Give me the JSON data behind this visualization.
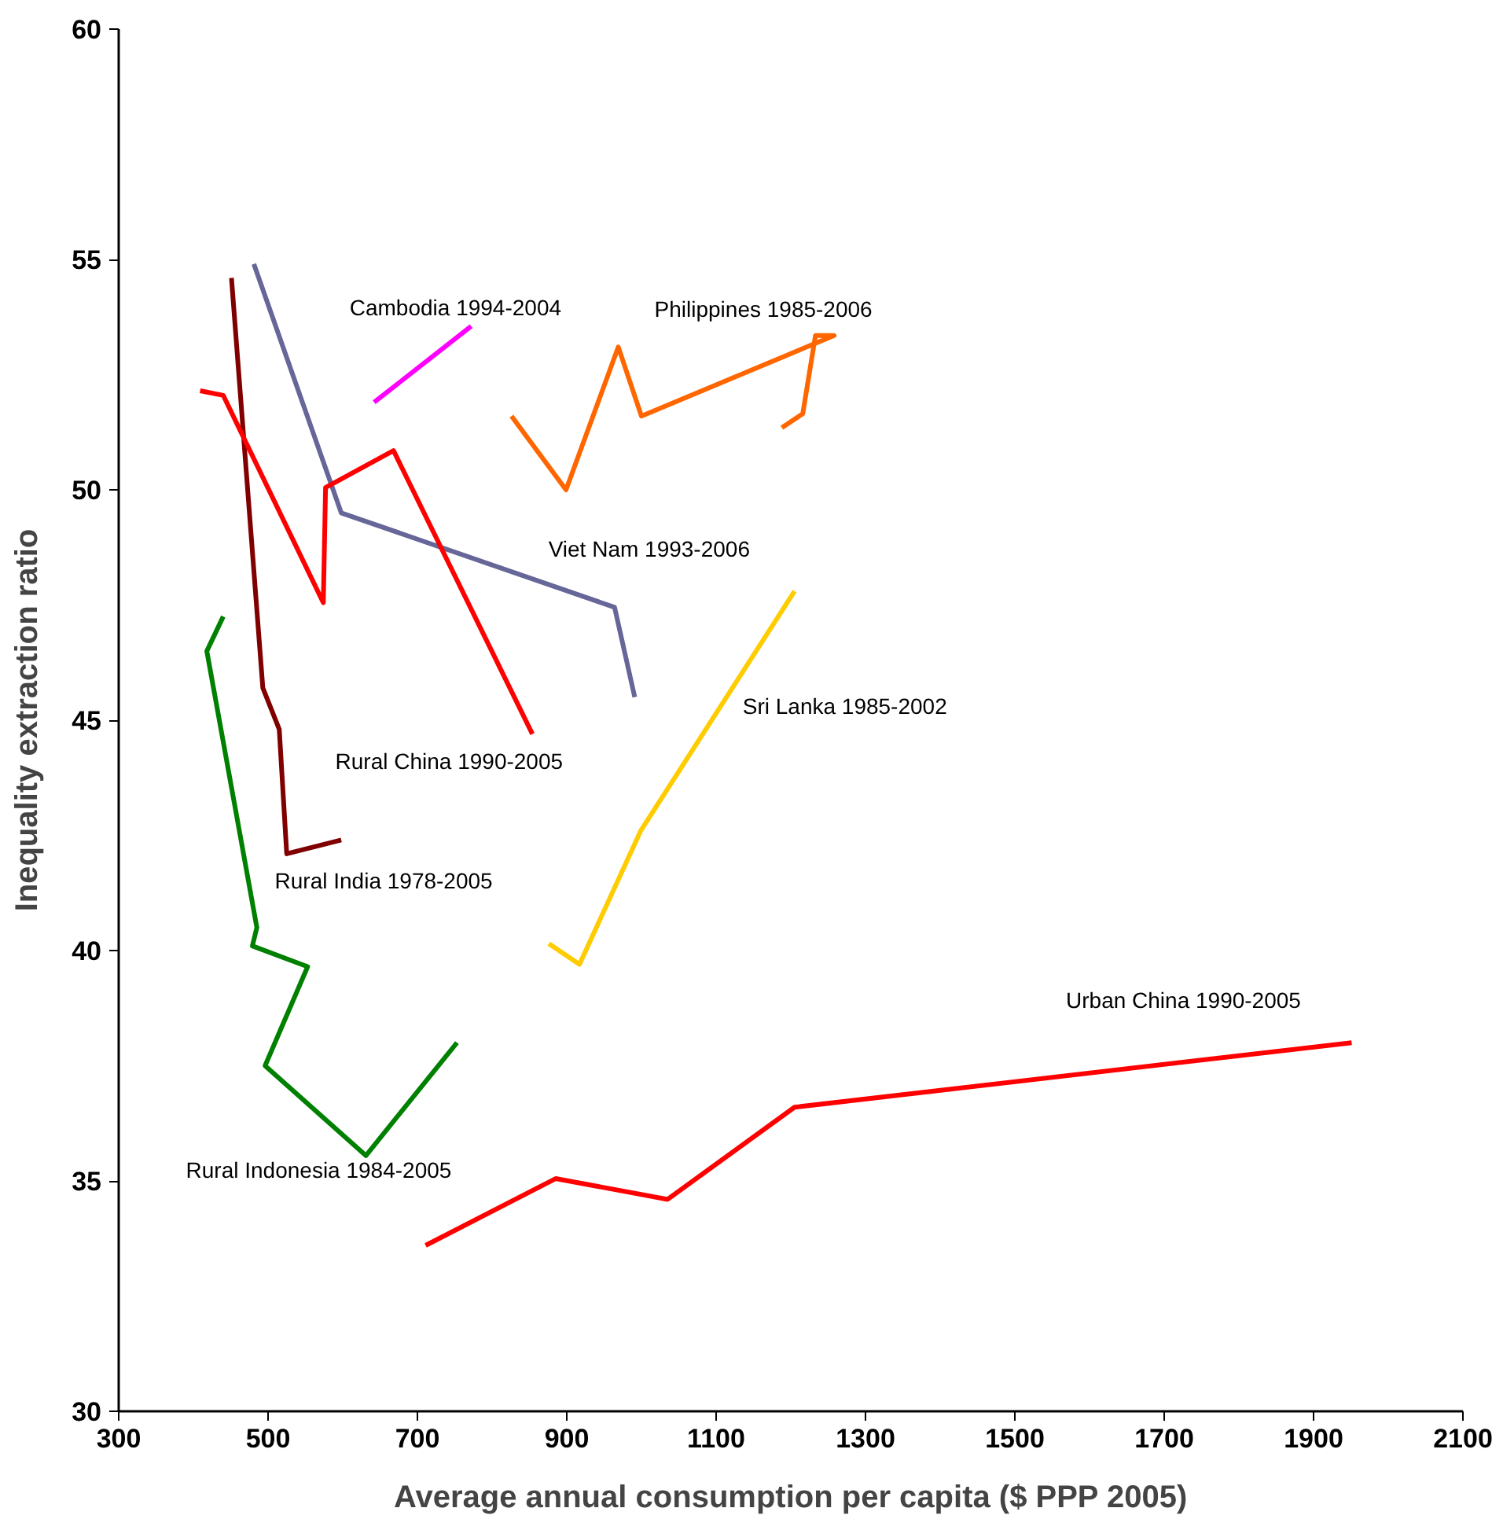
{
  "chart_data": {
    "type": "line",
    "xlabel": "Average annual consumption per capita ($ PPP 2005)",
    "ylabel": "Inequality extraction ratio",
    "xlim": [
      300,
      2100
    ],
    "ylim": [
      30,
      60
    ],
    "xticks": [
      300,
      500,
      700,
      900,
      1100,
      1300,
      1500,
      1700,
      1900,
      2100
    ],
    "yticks": [
      30,
      35,
      40,
      45,
      50,
      55,
      60
    ],
    "grid": false,
    "marker": "none",
    "line_style": "solid",
    "series": [
      {
        "name": "Rural India 1978-2005",
        "color": "#800000",
        "x": [
          451,
          493,
          515,
          525,
          598
        ],
        "values": [
          54.6,
          45.7,
          44.8,
          42.1,
          42.4
        ]
      },
      {
        "name": "Viet Nam 1993-2006",
        "color": "#666699",
        "x": [
          481,
          598,
          964,
          991
        ],
        "values": [
          54.9,
          49.5,
          47.45,
          45.5
        ]
      },
      {
        "name": "Rural China 1990-2005",
        "color": "#ff0000",
        "x": [
          409,
          440,
          574,
          577,
          668,
          854
        ],
        "values": [
          52.15,
          52.05,
          47.55,
          50.05,
          50.85,
          44.7
        ]
      },
      {
        "name": "Cambodia 1994-2004",
        "color": "#ff00ff",
        "x": [
          642,
          772
        ],
        "values": [
          51.9,
          53.55
        ]
      },
      {
        "name": "Philippines 1985-2006",
        "color": "#ff6600",
        "x": [
          826,
          899,
          969,
          1000,
          1258,
          1233,
          1216,
          1188
        ],
        "values": [
          51.6,
          50.0,
          53.1,
          51.6,
          53.35,
          53.35,
          51.65,
          51.35
        ]
      },
      {
        "name": "Sri Lanka 1985-2002",
        "color": "#ffcc00",
        "x": [
          876,
          917,
          999,
          1205
        ],
        "values": [
          40.15,
          39.7,
          42.6,
          47.8
        ]
      },
      {
        "name": "Urban China 1990-2005",
        "color": "#ff0000",
        "x": [
          711,
          885,
          1035,
          1205,
          1951
        ],
        "values": [
          33.6,
          35.05,
          34.6,
          36.6,
          38.0
        ]
      },
      {
        "name": "Rural Indonesia 1984-2005",
        "color": "#008000",
        "x": [
          440,
          418,
          485,
          479,
          553,
          496,
          631,
          753
        ],
        "values": [
          47.25,
          46.5,
          40.5,
          40.1,
          39.65,
          37.5,
          35.55,
          38.0
        ]
      }
    ]
  }
}
